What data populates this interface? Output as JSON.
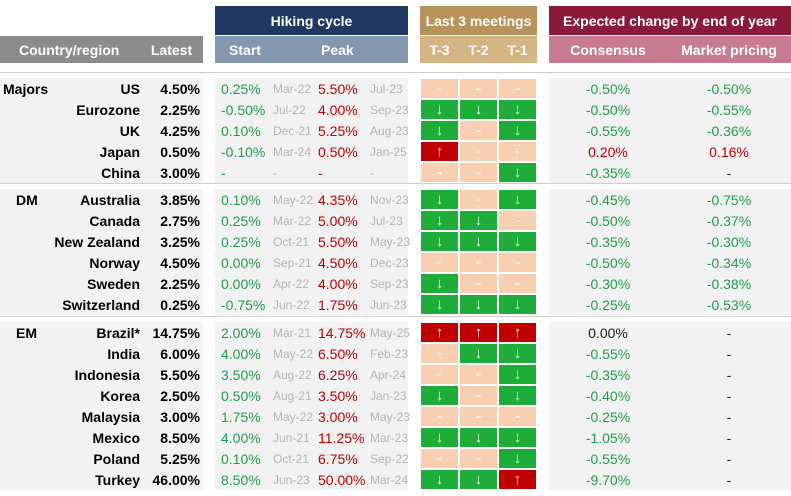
{
  "headers": {
    "country": "Country/region",
    "latest": "Latest",
    "hiking_cycle": "Hiking cycle",
    "start": "Start",
    "peak": "Peak",
    "last_meetings": "Last 3 meetings",
    "t3": "T-3",
    "t2": "T-2",
    "t1": "T-1",
    "expected": "Expected change by end of year",
    "consensus": "Consensus",
    "market": "Market pricing"
  },
  "colors": {
    "up": "#c00000",
    "down": "#1fad3a",
    "flat": "#f9cfb1",
    "positive_text": "#c00000",
    "negative_text": "#1ea04a"
  },
  "groups": [
    {
      "label": "Majors",
      "rows": [
        {
          "country": "US",
          "latest": "4.50%",
          "start": "0.25%",
          "start_date": "Mar-22",
          "peak": "5.50%",
          "peak_date": "Jul-23",
          "m": [
            "flat",
            "flat",
            "flat"
          ],
          "consensus": "-0.50%",
          "consensus_tone": "green",
          "market": "-0.50%",
          "market_tone": "green"
        },
        {
          "country": "Eurozone",
          "latest": "2.25%",
          "start": "-0.50%",
          "start_date": "Jul-22",
          "peak": "4.00%",
          "peak_date": "Sep-23",
          "m": [
            "down",
            "down",
            "down"
          ],
          "consensus": "-0.50%",
          "consensus_tone": "green",
          "market": "-0.55%",
          "market_tone": "green"
        },
        {
          "country": "UK",
          "latest": "4.25%",
          "start": "0.10%",
          "start_date": "Dec-21",
          "peak": "5.25%",
          "peak_date": "Aug-23",
          "m": [
            "down",
            "flat",
            "down"
          ],
          "consensus": "-0.55%",
          "consensus_tone": "green",
          "market": "-0.36%",
          "market_tone": "green"
        },
        {
          "country": "Japan",
          "latest": "0.50%",
          "start": "-0.10%",
          "start_date": "Mar-24",
          "peak": "0.50%",
          "peak_date": "Jan-25",
          "m": [
            "up",
            "flat",
            "flat"
          ],
          "consensus": "0.20%",
          "consensus_tone": "red",
          "market": "0.16%",
          "market_tone": "red"
        },
        {
          "country": "China",
          "latest": "3.00%",
          "start": "-",
          "start_date": "-",
          "peak": "-",
          "peak_date": "-",
          "m": [
            "flat",
            "flat",
            "down"
          ],
          "consensus": "-0.35%",
          "consensus_tone": "green",
          "market": "-",
          "market_tone": "black"
        }
      ]
    },
    {
      "label": "DM",
      "rows": [
        {
          "country": "Australia",
          "latest": "3.85%",
          "start": "0.10%",
          "start_date": "May-22",
          "peak": "4.35%",
          "peak_date": "Nov-23",
          "m": [
            "down",
            "flat",
            "down"
          ],
          "consensus": "-0.45%",
          "consensus_tone": "green",
          "market": "-0.75%",
          "market_tone": "green"
        },
        {
          "country": "Canada",
          "latest": "2.75%",
          "start": "0.25%",
          "start_date": "Mar-22",
          "peak": "5.00%",
          "peak_date": "Jul-23",
          "m": [
            "down",
            "down",
            "flat"
          ],
          "consensus": "-0.50%",
          "consensus_tone": "green",
          "market": "-0.37%",
          "market_tone": "green"
        },
        {
          "country": "New Zealand",
          "latest": "3.25%",
          "start": "0.25%",
          "start_date": "Oct-21",
          "peak": "5.50%",
          "peak_date": "May-23",
          "m": [
            "down",
            "down",
            "down"
          ],
          "consensus": "-0.35%",
          "consensus_tone": "green",
          "market": "-0.30%",
          "market_tone": "green"
        },
        {
          "country": "Norway",
          "latest": "4.50%",
          "start": "0.00%",
          "start_date": "Sep-21",
          "peak": "4.50%",
          "peak_date": "Dec-23",
          "m": [
            "flat",
            "flat",
            "flat"
          ],
          "consensus": "-0.50%",
          "consensus_tone": "green",
          "market": "-0.34%",
          "market_tone": "green"
        },
        {
          "country": "Sweden",
          "latest": "2.25%",
          "start": "0.00%",
          "start_date": "Apr-22",
          "peak": "4.00%",
          "peak_date": "Sep-23",
          "m": [
            "down",
            "flat",
            "flat"
          ],
          "consensus": "-0.30%",
          "consensus_tone": "green",
          "market": "-0.38%",
          "market_tone": "green"
        },
        {
          "country": "Switzerland",
          "latest": "0.25%",
          "start": "-0.75%",
          "start_date": "Jun-22",
          "peak": "1.75%",
          "peak_date": "Jun-23",
          "m": [
            "down",
            "down",
            "down"
          ],
          "consensus": "-0.25%",
          "consensus_tone": "green",
          "market": "-0.53%",
          "market_tone": "green"
        }
      ]
    },
    {
      "label": "EM",
      "rows": [
        {
          "country": "Brazil*",
          "latest": "14.75%",
          "start": "2.00%",
          "start_date": "Mar-21",
          "peak": "14.75%",
          "peak_date": "May-25",
          "m": [
            "up",
            "up",
            "up"
          ],
          "consensus": "0.00%",
          "consensus_tone": "black",
          "market": "-",
          "market_tone": "black"
        },
        {
          "country": "India",
          "latest": "6.00%",
          "start": "4.00%",
          "start_date": "May-22",
          "peak": "6.50%",
          "peak_date": "Feb-23",
          "m": [
            "flat",
            "down",
            "down"
          ],
          "consensus": "-0.55%",
          "consensus_tone": "green",
          "market": "-",
          "market_tone": "black"
        },
        {
          "country": "Indonesia",
          "latest": "5.50%",
          "start": "3.50%",
          "start_date": "Aug-22",
          "peak": "6.25%",
          "peak_date": "Apr-24",
          "m": [
            "flat",
            "flat",
            "down"
          ],
          "consensus": "-0.35%",
          "consensus_tone": "green",
          "market": "-",
          "market_tone": "black"
        },
        {
          "country": "Korea",
          "latest": "2.50%",
          "start": "0.50%",
          "start_date": "Aug-21",
          "peak": "3.50%",
          "peak_date": "Jan-23",
          "m": [
            "down",
            "flat",
            "down"
          ],
          "consensus": "-0.40%",
          "consensus_tone": "green",
          "market": "-",
          "market_tone": "black"
        },
        {
          "country": "Malaysia",
          "latest": "3.00%",
          "start": "1.75%",
          "start_date": "May-22",
          "peak": "3.00%",
          "peak_date": "May-23",
          "m": [
            "flat",
            "flat",
            "flat"
          ],
          "consensus": "-0.25%",
          "consensus_tone": "green",
          "market": "-",
          "market_tone": "black"
        },
        {
          "country": "Mexico",
          "latest": "8.50%",
          "start": "4.00%",
          "start_date": "Jun-21",
          "peak": "11.25%",
          "peak_date": "Mar-23",
          "m": [
            "down",
            "down",
            "down"
          ],
          "consensus": "-1.05%",
          "consensus_tone": "green",
          "market": "-",
          "market_tone": "black"
        },
        {
          "country": "Poland",
          "latest": "5.25%",
          "start": "0.10%",
          "start_date": "Oct-21",
          "peak": "6.75%",
          "peak_date": "Sep-22",
          "m": [
            "flat",
            "flat",
            "down"
          ],
          "consensus": "-0.55%",
          "consensus_tone": "green",
          "market": "-",
          "market_tone": "black"
        },
        {
          "country": "Turkey",
          "latest": "46.00%",
          "start": "8.50%",
          "start_date": "Jun-23",
          "peak": "50.00%",
          "peak_date": "Mar-24",
          "m": [
            "down",
            "down",
            "up"
          ],
          "consensus": "-9.70%",
          "consensus_tone": "green",
          "market": "-",
          "market_tone": "black"
        }
      ]
    }
  ]
}
